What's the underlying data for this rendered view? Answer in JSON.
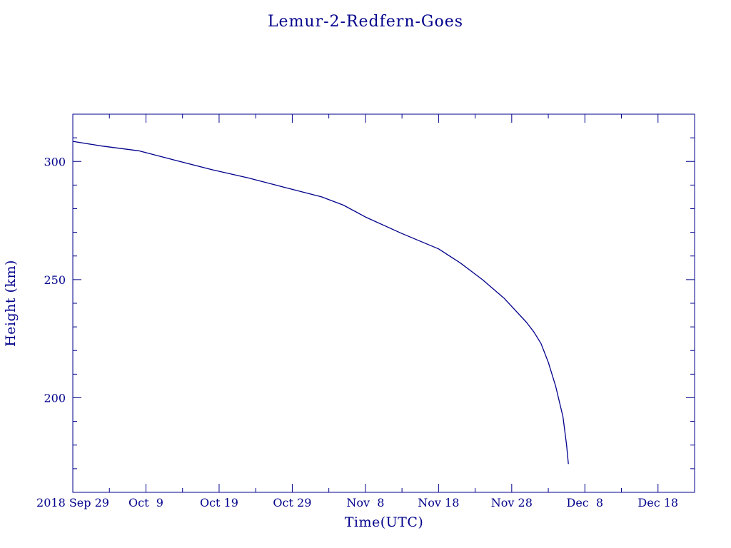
{
  "colors": {
    "ink": "#00008b",
    "background": "#ffffff"
  },
  "chart_data": {
    "type": "line",
    "title": "Lemur-2-Redfern-Goes",
    "xlabel": "Time(UTC)",
    "ylabel": "Height (km)",
    "x_is_date": true,
    "xlim": [
      "2018-09-29",
      "2018-12-23"
    ],
    "ylim": [
      160,
      320
    ],
    "x_ticks": [
      {
        "date": "2018-09-29",
        "label": "2018 Sep 29"
      },
      {
        "date": "2018-10-09",
        "label": "Oct  9"
      },
      {
        "date": "2018-10-19",
        "label": "Oct 19"
      },
      {
        "date": "2018-10-29",
        "label": "Oct 29"
      },
      {
        "date": "2018-11-08",
        "label": "Nov  8"
      },
      {
        "date": "2018-11-18",
        "label": "Nov 18"
      },
      {
        "date": "2018-11-28",
        "label": "Nov 28"
      },
      {
        "date": "2018-12-08",
        "label": "Dec  8"
      },
      {
        "date": "2018-12-18",
        "label": "Dec 18"
      }
    ],
    "y_ticks": [
      200,
      250,
      300
    ],
    "grid": false,
    "series": [
      {
        "x": [
          "2018-09-29",
          "2018-10-03",
          "2018-10-08",
          "2018-10-13",
          "2018-10-18",
          "2018-10-23",
          "2018-10-28",
          "2018-11-02",
          "2018-11-05",
          "2018-11-08",
          "2018-11-13",
          "2018-11-18",
          "2018-11-21",
          "2018-11-24",
          "2018-11-27",
          "2018-11-30",
          "2018-12-01",
          "2018-12-02",
          "2018-12-03",
          "2018-12-04",
          "2018-12-05",
          "2018-12-05 12:00",
          "2018-12-05 18:00"
        ],
        "y": [
          308.5,
          306.5,
          304.5,
          300.5,
          296.5,
          293,
          289,
          285,
          281.5,
          276.5,
          269.5,
          263,
          257,
          250,
          242,
          232,
          228,
          223,
          215,
          205,
          192,
          180,
          172
        ]
      }
    ]
  }
}
